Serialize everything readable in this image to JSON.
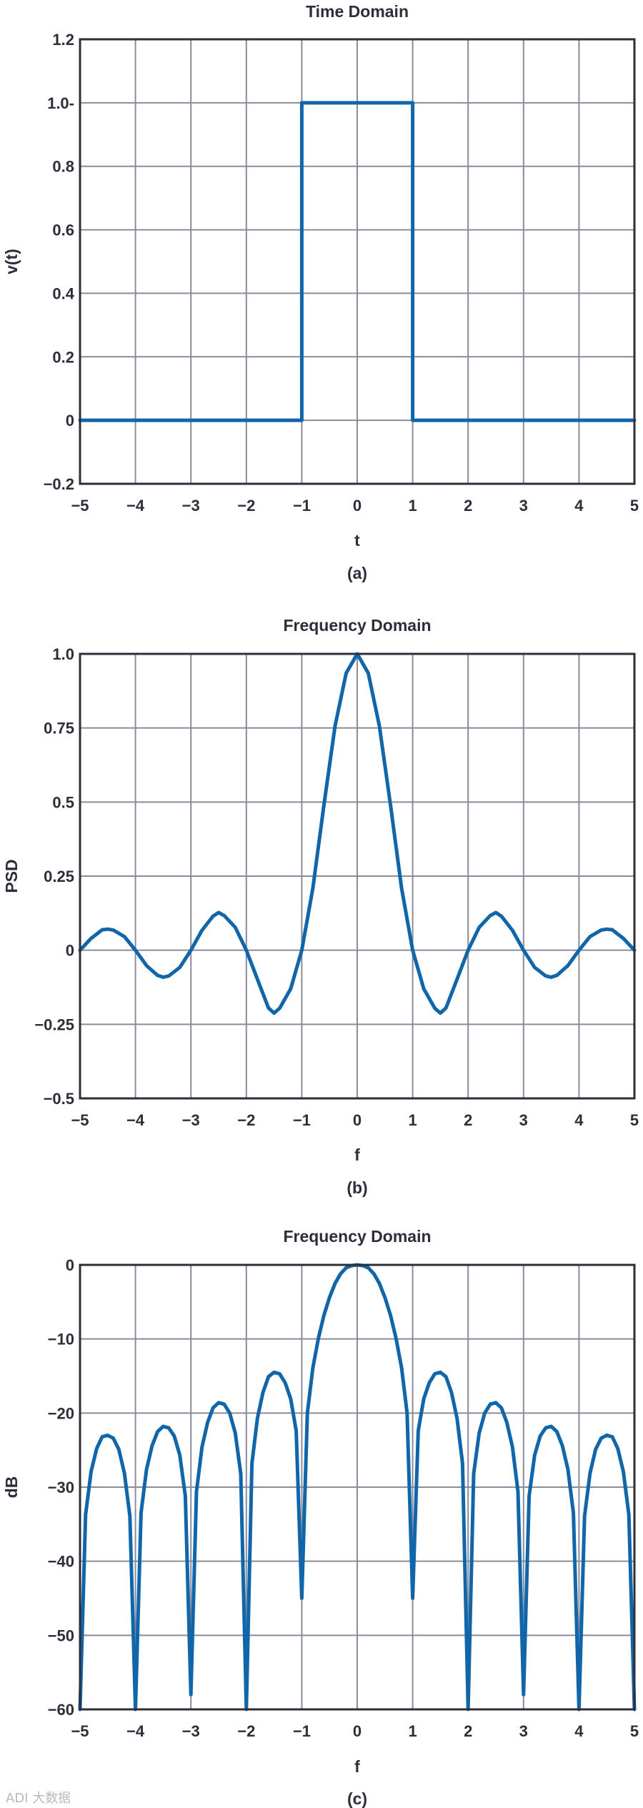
{
  "chart_data": [
    {
      "type": "line",
      "title": "Time Domain",
      "xlabel": "t",
      "ylabel": "v(t)",
      "caption": "(a)",
      "xlim": [
        -5,
        5
      ],
      "ylim": [
        -0.2,
        1.2
      ],
      "xticks": [
        -5,
        -4,
        -3,
        -2,
        -1,
        0,
        1,
        2,
        3,
        4,
        5
      ],
      "xtick_labels": [
        "−5",
        "−4",
        "−3",
        "−2",
        "−1",
        "0",
        "1",
        "2",
        "3",
        "4",
        "5"
      ],
      "yticks": [
        -0.2,
        0,
        0.2,
        0.4,
        0.6,
        0.8,
        1.0,
        1.2
      ],
      "ytick_labels": [
        "−0.2",
        "0",
        "0.2",
        "0.4",
        "0.6",
        "0.8",
        "1.0-",
        "1.2"
      ],
      "grid": true,
      "series": [
        {
          "x": [
            -5,
            -1,
            -1,
            1,
            1,
            5
          ],
          "y": [
            0,
            0,
            1,
            1,
            0,
            0
          ]
        }
      ],
      "color": "#1166aa"
    },
    {
      "type": "line",
      "title": "Frequency Domain",
      "xlabel": "f",
      "ylabel": "PSD",
      "caption": "(b)",
      "xlim": [
        -5,
        5
      ],
      "ylim": [
        -0.5,
        1.0
      ],
      "xticks": [
        -5,
        -4,
        -3,
        -2,
        -1,
        0,
        1,
        2,
        3,
        4,
        5
      ],
      "xtick_labels": [
        "−5",
        "−4",
        "−3",
        "−2",
        "−1",
        "0",
        "1",
        "2",
        "3",
        "4",
        "5"
      ],
      "yticks": [
        -0.5,
        -0.25,
        0,
        0.25,
        0.5,
        0.75,
        1.0
      ],
      "ytick_labels": [
        "−0.5",
        "−0.25",
        "0",
        "0.25",
        "0.5",
        "0.75",
        "1.0"
      ],
      "grid": true,
      "series": [
        {
          "x": [
            -5,
            -4.8,
            -4.6,
            -4.5,
            -4.4,
            -4.2,
            -4,
            -3.8,
            -3.6,
            -3.5,
            -3.4,
            -3.2,
            -3,
            -2.8,
            -2.6,
            -2.5,
            -2.4,
            -2.2,
            -2,
            -1.8,
            -1.6,
            -1.5,
            -1.4,
            -1.2,
            -1,
            -0.8,
            -0.6,
            -0.4,
            -0.2,
            0,
            0.2,
            0.4,
            0.6,
            0.8,
            1,
            1.2,
            1.4,
            1.5,
            1.6,
            1.8,
            2,
            2.2,
            2.4,
            2.5,
            2.6,
            2.8,
            3,
            3.2,
            3.4,
            3.5,
            3.6,
            3.8,
            4,
            4.2,
            4.4,
            4.5,
            4.6,
            4.8,
            5
          ],
          "y": [
            0,
            0.04,
            0.069,
            0.071,
            0.068,
            0.046,
            0,
            -0.052,
            -0.085,
            -0.091,
            -0.087,
            -0.058,
            0,
            0.067,
            0.115,
            0.127,
            0.117,
            0.077,
            0,
            -0.098,
            -0.195,
            -0.212,
            -0.196,
            -0.13,
            0,
            0.209,
            0.49,
            0.757,
            0.935,
            1.0,
            0.935,
            0.757,
            0.49,
            0.209,
            0,
            -0.13,
            -0.196,
            -0.212,
            -0.195,
            -0.098,
            0,
            0.077,
            0.117,
            0.127,
            0.115,
            0.067,
            0,
            -0.058,
            -0.087,
            -0.091,
            -0.085,
            -0.052,
            0,
            0.046,
            0.068,
            0.071,
            0.069,
            0.04,
            0
          ]
        }
      ],
      "color": "#1166aa"
    },
    {
      "type": "line",
      "title": "Frequency Domain",
      "xlabel": "f",
      "ylabel": "dB",
      "caption": "(c)",
      "xlim": [
        -5,
        5
      ],
      "ylim": [
        -60,
        0
      ],
      "xticks": [
        -5,
        -4,
        -3,
        -2,
        -1,
        0,
        1,
        2,
        3,
        4,
        5
      ],
      "xtick_labels": [
        "−5",
        "−4",
        "−3",
        "−2",
        "−1",
        "0",
        "1",
        "2",
        "3",
        "4",
        "5"
      ],
      "yticks": [
        -60,
        -50,
        -40,
        -30,
        -20,
        -10,
        0
      ],
      "ytick_labels": [
        "−60",
        "−50",
        "−40",
        "−30",
        "−20",
        "−10",
        "0"
      ],
      "grid": true,
      "series": [
        {
          "x": [
            -5,
            -4.9,
            -4.8,
            -4.7,
            -4.6,
            -4.5,
            -4.4,
            -4.3,
            -4.2,
            -4.1,
            -4,
            -3.9,
            -3.8,
            -3.7,
            -3.6,
            -3.5,
            -3.4,
            -3.3,
            -3.2,
            -3.1,
            -3,
            -2.9,
            -2.8,
            -2.7,
            -2.6,
            -2.5,
            -2.4,
            -2.3,
            -2.2,
            -2.1,
            -2,
            -1.9,
            -1.8,
            -1.7,
            -1.6,
            -1.5,
            -1.4,
            -1.3,
            -1.2,
            -1.1,
            -1,
            -0.9,
            -0.8,
            -0.7,
            -0.6,
            -0.5,
            -0.4,
            -0.3,
            -0.2,
            -0.1,
            0,
            0.1,
            0.2,
            0.3,
            0.4,
            0.5,
            0.6,
            0.7,
            0.8,
            0.9,
            1,
            1.1,
            1.2,
            1.3,
            1.4,
            1.5,
            1.6,
            1.7,
            1.8,
            1.9,
            2,
            2.1,
            2.2,
            2.3,
            2.4,
            2.5,
            2.6,
            2.7,
            2.8,
            2.9,
            3,
            3.1,
            3.2,
            3.3,
            3.4,
            3.5,
            3.6,
            3.7,
            3.8,
            3.9,
            4,
            4.1,
            4.2,
            4.3,
            4.4,
            4.5,
            4.6,
            4.7,
            4.8,
            4.9,
            5
          ],
          "y": [
            -60,
            -33.7,
            -27.9,
            -24.8,
            -23.2,
            -23.0,
            -23.4,
            -24.9,
            -28.1,
            -33.9,
            -60,
            -33.5,
            -27.6,
            -24.4,
            -22.5,
            -21.8,
            -22.0,
            -23.1,
            -25.7,
            -31.2,
            -58,
            -30.6,
            -24.6,
            -21.3,
            -19.3,
            -18.6,
            -18.8,
            -20.0,
            -22.7,
            -28.2,
            -60,
            -26.8,
            -20.7,
            -17.2,
            -15.1,
            -14.5,
            -14.7,
            -15.9,
            -18.1,
            -22.4,
            -45,
            -20.0,
            -13.9,
            -9.9,
            -6.8,
            -4.4,
            -2.5,
            -1.2,
            -0.4,
            -0.1,
            0,
            -0.1,
            -0.4,
            -1.2,
            -2.5,
            -4.4,
            -6.8,
            -9.9,
            -13.9,
            -20.0,
            -45,
            -22.4,
            -18.1,
            -15.9,
            -14.7,
            -14.5,
            -15.1,
            -17.2,
            -20.7,
            -26.8,
            -60,
            -28.2,
            -22.7,
            -20.0,
            -18.8,
            -18.6,
            -19.3,
            -21.3,
            -24.6,
            -30.6,
            -58,
            -31.2,
            -25.7,
            -23.1,
            -22.0,
            -21.8,
            -22.5,
            -24.4,
            -27.6,
            -33.5,
            -60,
            -33.9,
            -28.1,
            -24.9,
            -23.4,
            -23.0,
            -23.2,
            -24.8,
            -27.9,
            -33.7,
            -60
          ]
        }
      ],
      "color": "#1166aa"
    }
  ],
  "watermark": "ADI 大数据"
}
